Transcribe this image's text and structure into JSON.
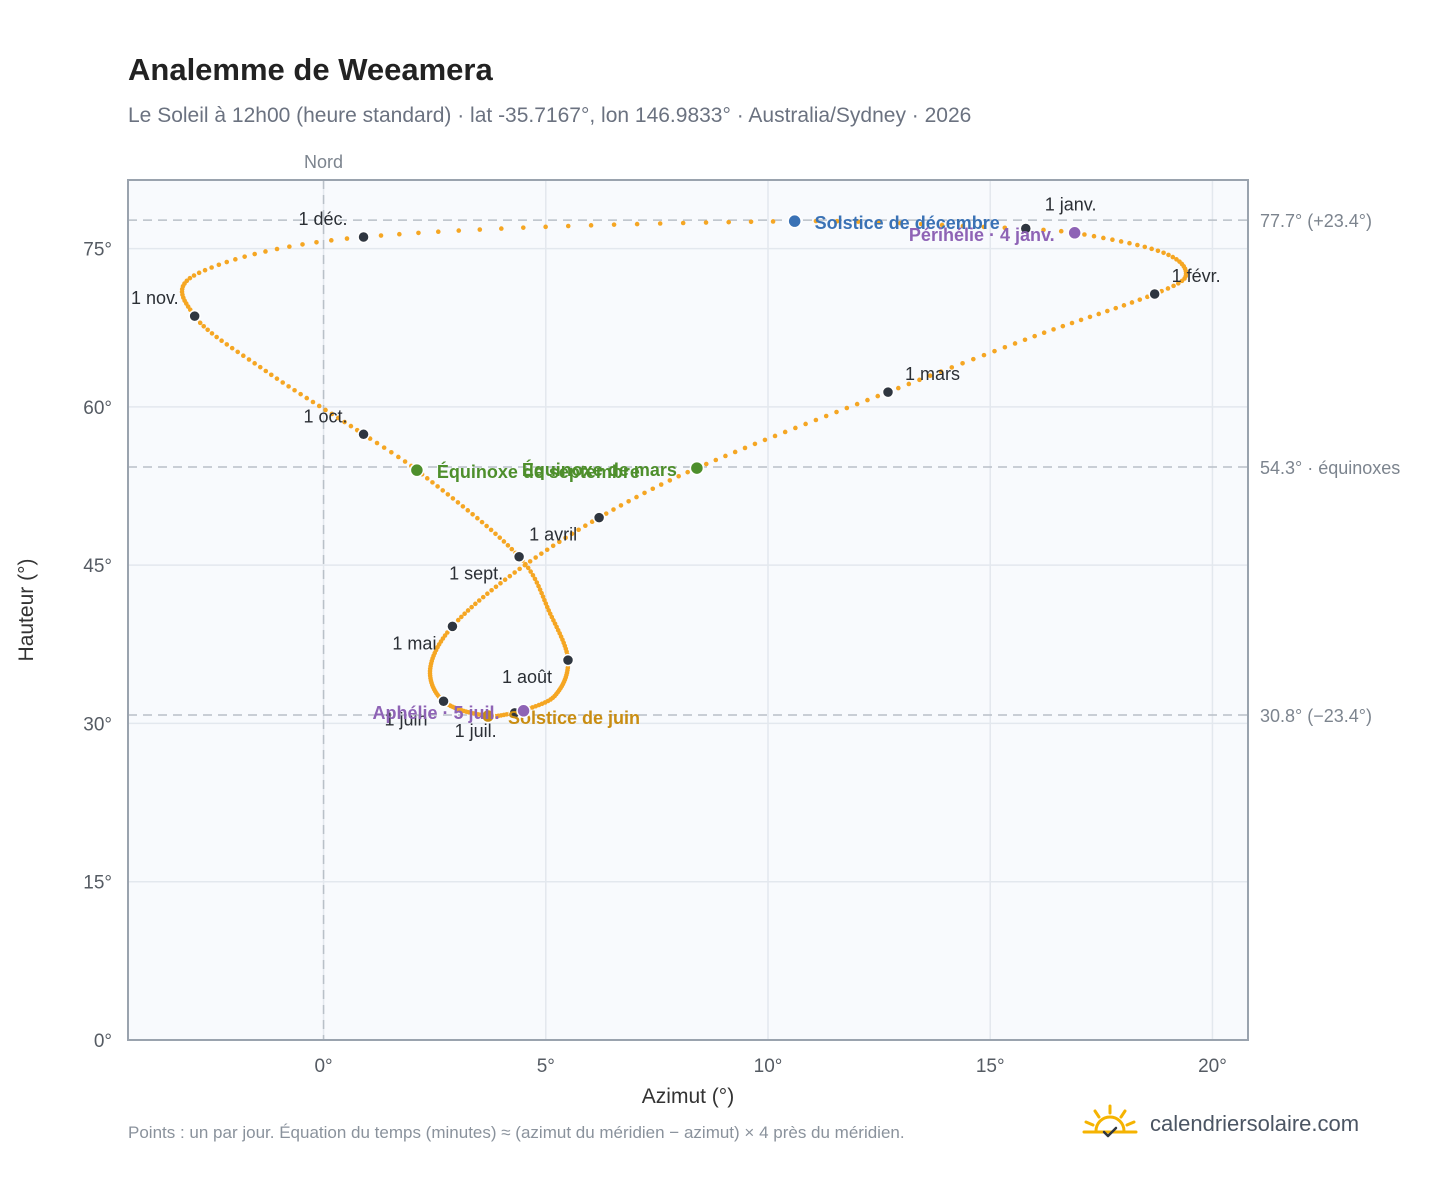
{
  "title": "Analemme de Weeamera",
  "subtitle": "Le Soleil à 12h00 (heure standard) · lat -35.7167°, lon 146.9833° · Australia/Sydney · 2026",
  "footer": "Points : un par jour. Équation du temps (minutes) ≈ (azimut du méridien − azimut) × 4 près du méridien.",
  "brand": {
    "name": "calendriersolaire.com",
    "icon": "sun-check-icon",
    "color": "#f5b301"
  },
  "colors": {
    "curve": "#f5a623",
    "month_dot": "#2f3640",
    "equinox": "#4e8f2c",
    "december_solstice": "#3a72b5",
    "june_solstice": "#c98d12",
    "perihelion_aphelion": "#8e63b5",
    "plot_bg": "#f8fafd",
    "grid": "#e3e8ee",
    "reference_line": "#b9c0c8"
  },
  "chart_data": {
    "type": "scatter",
    "title": "Analemme de Weeamera",
    "xlabel": "Azimut (°)",
    "ylabel": "Hauteur (°)",
    "xlim": [
      -4.4,
      20.8
    ],
    "ylim": [
      0,
      81.5
    ],
    "xticks": [
      0,
      5,
      10,
      15,
      20
    ],
    "xtick_labels": [
      "0°",
      "5°",
      "10°",
      "15°",
      "20°"
    ],
    "yticks": [
      0,
      15,
      30,
      45,
      60,
      75
    ],
    "ytick_labels": [
      "0°",
      "15°",
      "30°",
      "45°",
      "60°",
      "75°"
    ],
    "grid": true,
    "reference_lines": {
      "horizontal": [
        {
          "y": 77.7,
          "label": "77.7° (+23.4°)"
        },
        {
          "y": 54.3,
          "label": "54.3° · équinoxes"
        },
        {
          "y": 30.8,
          "label": "30.8° (−23.4°)"
        }
      ],
      "vertical": [
        {
          "x": 0,
          "label": "Nord"
        }
      ]
    },
    "month_markers": [
      {
        "label": "1 janv.",
        "x": 15.8,
        "y": 76.9
      },
      {
        "label": "1 févr.",
        "x": 18.7,
        "y": 70.7
      },
      {
        "label": "1 mars",
        "x": 12.7,
        "y": 61.4
      },
      {
        "label": "1 avril",
        "x": 6.2,
        "y": 49.5
      },
      {
        "label": "1 mai",
        "x": 2.9,
        "y": 39.2
      },
      {
        "label": "1 juin",
        "x": 2.7,
        "y": 32.1
      },
      {
        "label": "1 juil.",
        "x": 4.3,
        "y": 31.0
      },
      {
        "label": "1 août",
        "x": 5.5,
        "y": 36.0
      },
      {
        "label": "1 sept.",
        "x": 4.4,
        "y": 45.8
      },
      {
        "label": "1 oct.",
        "x": 0.9,
        "y": 57.4
      },
      {
        "label": "1 nov.",
        "x": -2.9,
        "y": 68.6
      },
      {
        "label": "1 déc.",
        "x": 0.9,
        "y": 76.1
      }
    ],
    "events": [
      {
        "label": "Solstice de décembre",
        "x": 10.6,
        "y": 77.6,
        "color": "#3a72b5"
      },
      {
        "label": "Périhélie · 4 janv.",
        "x": 16.9,
        "y": 76.5,
        "color": "#8e63b5"
      },
      {
        "label": "Équinoxe de mars",
        "x": 8.4,
        "y": 54.2,
        "color": "#4e8f2c"
      },
      {
        "label": "Équinoxe de septembre",
        "x": 2.1,
        "y": 54.0,
        "color": "#4e8f2c"
      },
      {
        "label": "Solstice de juin",
        "x": 3.7,
        "y": 30.7,
        "color": "#c98d12"
      },
      {
        "label": "Aphélie · 5 juil.",
        "x": 4.5,
        "y": 31.2,
        "color": "#8e63b5"
      }
    ],
    "series": [
      {
        "label_key": "daily_positions",
        "points_per_day": 1
      }
    ],
    "anchors_by_day": [
      {
        "day": 1,
        "x": 15.8,
        "y": 76.9
      },
      {
        "day": 4,
        "x": 16.9,
        "y": 76.5
      },
      {
        "day": 15,
        "x": 18.9,
        "y": 74.6
      },
      {
        "day": 25,
        "x": 19.4,
        "y": 72.4
      },
      {
        "day": 32,
        "x": 18.7,
        "y": 70.7
      },
      {
        "day": 46,
        "x": 16.0,
        "y": 66.7
      },
      {
        "day": 60,
        "x": 12.7,
        "y": 61.4
      },
      {
        "day": 79,
        "x": 8.4,
        "y": 54.2
      },
      {
        "day": 91,
        "x": 6.2,
        "y": 49.5
      },
      {
        "day": 105,
        "x": 4.3,
        "y": 44.3
      },
      {
        "day": 121,
        "x": 2.9,
        "y": 39.2
      },
      {
        "day": 136,
        "x": 2.4,
        "y": 35.2
      },
      {
        "day": 152,
        "x": 2.7,
        "y": 32.1
      },
      {
        "day": 172,
        "x": 3.7,
        "y": 30.7
      },
      {
        "day": 182,
        "x": 4.3,
        "y": 31.0
      },
      {
        "day": 186,
        "x": 4.5,
        "y": 31.2
      },
      {
        "day": 197,
        "x": 5.2,
        "y": 32.6
      },
      {
        "day": 213,
        "x": 5.5,
        "y": 36.0
      },
      {
        "day": 228,
        "x": 5.1,
        "y": 40.4
      },
      {
        "day": 244,
        "x": 4.4,
        "y": 45.8
      },
      {
        "day": 266,
        "x": 2.1,
        "y": 54.0
      },
      {
        "day": 274,
        "x": 0.9,
        "y": 57.4
      },
      {
        "day": 290,
        "x": -1.3,
        "y": 63.4
      },
      {
        "day": 305,
        "x": -2.9,
        "y": 68.6
      },
      {
        "day": 320,
        "x": -2.8,
        "y": 72.7
      },
      {
        "day": 335,
        "x": 0.9,
        "y": 76.1
      },
      {
        "day": 355,
        "x": 10.6,
        "y": 77.6
      },
      {
        "day": 366,
        "x": 15.8,
        "y": 76.9
      }
    ]
  }
}
